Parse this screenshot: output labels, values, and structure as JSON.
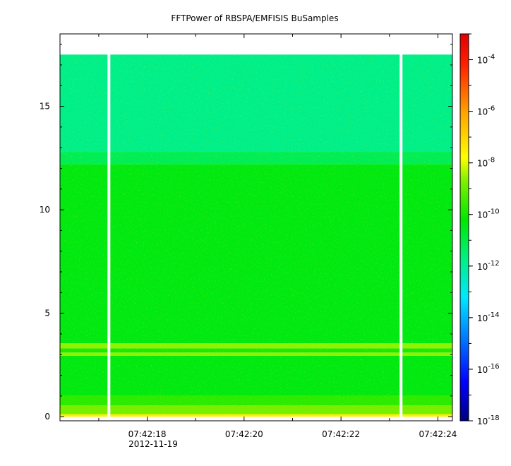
{
  "chart_data": {
    "type": "heatmap",
    "title": "FFTPower of RBSPA/EMFISIS  BuSamples",
    "xlabel": "",
    "ylabel": "",
    "x_axis": {
      "range_seconds_of_minute": [
        16.2,
        24.3
      ],
      "tick_labels": [
        "07:42:18",
        "07:42:20",
        "07:42:22",
        "07:42:24"
      ],
      "tick_times": [
        "07:42:18",
        "07:42:20",
        "07:42:22",
        "07:42:24"
      ],
      "minor_tick_times": [
        "07:42:17",
        "07:42:19",
        "07:42:21",
        "07:42:23"
      ],
      "date_label": "2012-11-19"
    },
    "y_axis": {
      "range": [
        -0.2,
        18.5
      ],
      "ticks": [
        0,
        5,
        10,
        15
      ],
      "tick_labels": [
        "0",
        "5",
        "10",
        "15"
      ]
    },
    "colorbar": {
      "scale": "log",
      "range": [
        1e-18,
        0.001
      ],
      "tick_labels": [
        {
          "base": "10",
          "exp": "-4"
        },
        {
          "base": "10",
          "exp": "-6"
        },
        {
          "base": "10",
          "exp": "-8"
        },
        {
          "base": "10",
          "exp": "-10"
        },
        {
          "base": "10",
          "exp": "-12"
        },
        {
          "base": "10",
          "exp": "-14"
        },
        {
          "base": "10",
          "exp": "-16"
        },
        {
          "base": "10",
          "exp": "-18"
        }
      ],
      "tick_values_log10": [
        -4,
        -6,
        -8,
        -10,
        -12,
        -14,
        -16,
        -18
      ]
    },
    "data_frequency_range": [
      0,
      17.5
    ],
    "data_gaps_seconds": [
      17.21,
      23.24
    ],
    "frequency_bands": [
      {
        "from": 0.0,
        "to": 0.12,
        "log10_power": -7.5
      },
      {
        "from": 0.12,
        "to": 0.55,
        "log10_power": -8.8
      },
      {
        "from": 0.55,
        "to": 1.0,
        "log10_power": -9.7
      },
      {
        "from": 1.0,
        "to": 2.95,
        "log10_power": -10.4
      },
      {
        "from": 2.95,
        "to": 3.1,
        "log10_power": -8.6
      },
      {
        "from": 3.1,
        "to": 3.3,
        "log10_power": -9.9
      },
      {
        "from": 3.3,
        "to": 3.55,
        "log10_power": -8.6
      },
      {
        "from": 3.55,
        "to": 12.2,
        "log10_power": -10.4
      },
      {
        "from": 12.2,
        "to": 12.8,
        "log10_power": -11.2
      },
      {
        "from": 12.8,
        "to": 17.5,
        "log10_power": -11.8
      }
    ],
    "grid": false,
    "colors": {
      "palette": [
        "#000080",
        "#0000ff",
        "#0080ff",
        "#00e8ff",
        "#00f080",
        "#00e800",
        "#80f000",
        "#ffff00",
        "#ffa000",
        "#ff2000",
        "#e00000"
      ]
    }
  }
}
